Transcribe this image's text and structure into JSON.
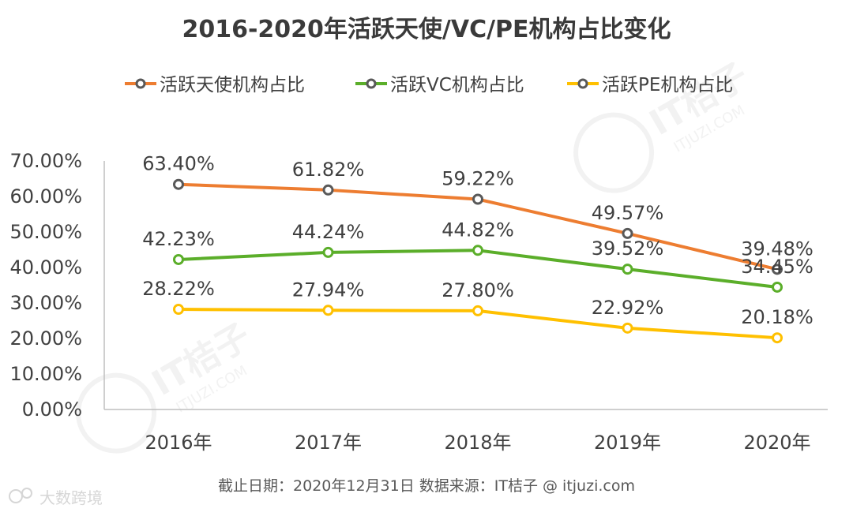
{
  "chart_data": {
    "type": "line",
    "title": "2016-2020年活跃天使/VC/PE机构占比变化",
    "categories": [
      "2016年",
      "2017年",
      "2018年",
      "2019年",
      "2020年"
    ],
    "y_ticks": [
      "0.00%",
      "10.00%",
      "20.00%",
      "30.00%",
      "40.00%",
      "50.00%",
      "60.00%",
      "70.00%"
    ],
    "ylim": [
      0,
      70
    ],
    "grid": false,
    "legend_position": "top",
    "series": [
      {
        "name": "活跃天使机构占比",
        "color": "#ED7D31",
        "values": [
          63.4,
          61.82,
          59.22,
          49.57,
          39.48
        ],
        "labels": [
          "63.40%",
          "61.82%",
          "59.22%",
          "49.57%",
          "39.48%"
        ]
      },
      {
        "name": "活跃VC机构占比",
        "color": "#5BAE2A",
        "values": [
          42.23,
          44.24,
          44.82,
          39.52,
          34.45
        ],
        "labels": [
          "42.23%",
          "44.24%",
          "44.82%",
          "39.52%",
          "34.45%"
        ]
      },
      {
        "name": "活跃PE机构占比",
        "color": "#FFC000",
        "values": [
          28.22,
          27.94,
          27.8,
          22.92,
          20.18
        ],
        "labels": [
          "28.22%",
          "27.94%",
          "27.80%",
          "22.92%",
          "20.18%"
        ]
      }
    ],
    "marker_color": "#595959",
    "source_note": "截止日期：2020年12月31日     数据来源：IT桔子 @ itjuzi.com"
  },
  "watermarks": {
    "logo_text": "IT桔子",
    "logo_url": "ITJUZI.COM",
    "corner_text": "大数跨境"
  },
  "colors": {
    "axis": "#bfbfbf",
    "text": "#404040"
  }
}
